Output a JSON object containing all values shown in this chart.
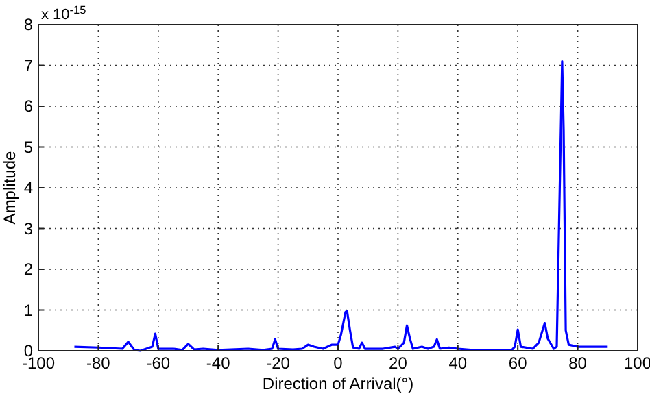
{
  "chart_data": {
    "type": "line",
    "xlabel": "Direction of Arrival(°)",
    "ylabel": "Amplitude",
    "annotations": [
      "x 10$^{-15}$"
    ],
    "xlim": [
      -100,
      100
    ],
    "xticks": [
      -100,
      -80,
      -60,
      -40,
      -20,
      0,
      20,
      40,
      60,
      80,
      100
    ],
    "ylim": [
      0,
      8
    ],
    "yticks": [
      0,
      1,
      2,
      3,
      4,
      5,
      6,
      7,
      8
    ],
    "grid": true,
    "marker": "none",
    "line_style": "solid",
    "series": [
      {
        "color": "#0000ff",
        "x": [
          -88,
          -80,
          -72,
          -70,
          -68,
          -66,
          -62,
          -61,
          -60,
          -55,
          -52,
          -50,
          -48,
          -45,
          -40,
          -30,
          -25,
          -22,
          -21,
          -20,
          -15,
          -12,
          -10,
          -8,
          -5,
          -2,
          0,
          1,
          2.5,
          3,
          4,
          5,
          7,
          8,
          9,
          15,
          19,
          20,
          22,
          23,
          24,
          25,
          28,
          30,
          32,
          33,
          34,
          37,
          40,
          45,
          58,
          59,
          60,
          61,
          65,
          67,
          69,
          70,
          72,
          73,
          74,
          74.8,
          75.3,
          76,
          77,
          80,
          90
        ],
        "values": [
          0.1,
          0.08,
          0.05,
          0.22,
          0.02,
          0,
          0.1,
          0.42,
          0.05,
          0.05,
          0.02,
          0.17,
          0.03,
          0.05,
          0.02,
          0.05,
          0.02,
          0.05,
          0.28,
          0.05,
          0.03,
          0.05,
          0.15,
          0.1,
          0.05,
          0.15,
          0.15,
          0.4,
          0.95,
          0.98,
          0.5,
          0.08,
          0.05,
          0.2,
          0.05,
          0.05,
          0.1,
          0.05,
          0.2,
          0.62,
          0.3,
          0.05,
          0.1,
          0.05,
          0.1,
          0.28,
          0.05,
          0.08,
          0.05,
          0.02,
          0.02,
          0.1,
          0.52,
          0.1,
          0.05,
          0.2,
          0.68,
          0.3,
          0.05,
          0.1,
          4,
          7.1,
          5.4,
          0.5,
          0.15,
          0.1,
          0.1
        ]
      }
    ]
  }
}
